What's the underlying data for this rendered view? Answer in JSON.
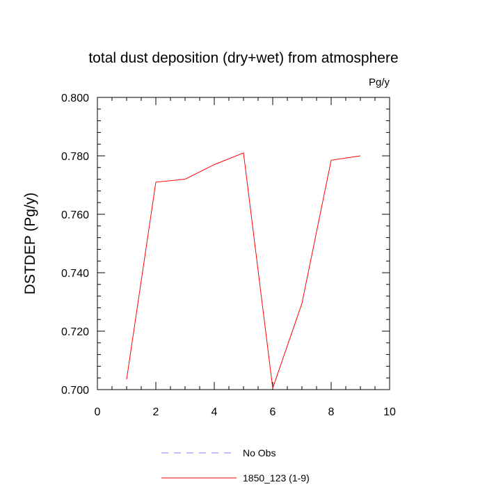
{
  "chart_data": {
    "type": "line",
    "title": "total dust deposition (dry+wet) from atmosphere",
    "units": "Pg/y",
    "xlabel": "",
    "ylabel": "DSTDEP  (Pg/y)",
    "xlim": [
      0,
      10
    ],
    "ylim": [
      0.7,
      0.8
    ],
    "x_ticks": [
      "0",
      "2",
      "4",
      "6",
      "8",
      "10"
    ],
    "y_ticks": [
      "0.700",
      "0.720",
      "0.740",
      "0.760",
      "0.780",
      "0.800"
    ],
    "grid": false,
    "legend_position": "bottom-center",
    "series": [
      {
        "name": "1850_123 (1-9)",
        "color": "#ff0000",
        "style": "solid",
        "x": [
          1,
          2,
          3,
          4,
          5,
          6,
          7,
          8,
          9
        ],
        "y": [
          0.7035,
          0.771,
          0.772,
          0.777,
          0.781,
          0.7005,
          0.7295,
          0.7785,
          0.78
        ]
      }
    ],
    "legend": [
      {
        "label": "No Obs",
        "color": "#8080ff",
        "style": "dashed"
      },
      {
        "label": "1850_123 (1-9)",
        "color": "#ff0000",
        "style": "solid"
      }
    ]
  }
}
